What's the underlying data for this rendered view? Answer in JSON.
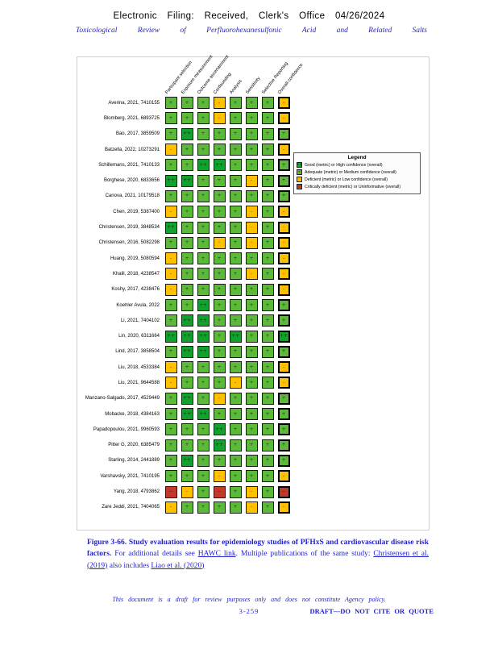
{
  "header": {
    "line1": "Electronic Filing: Received, Clerk's Office 04/26/2024",
    "line2": "Toxicological Review of Perfluorohexanesulfonic Acid and Related Salts"
  },
  "figure": {
    "legend": {
      "title": "Legend",
      "items": [
        {
          "symbol": "++",
          "color": "#12a12c",
          "label": "Good (metric) or High confidence (overall)"
        },
        {
          "symbol": "+",
          "color": "#5db93a",
          "label": "Adequate (metric) or Medium confidence (overall)"
        },
        {
          "symbol": "-",
          "color": "#ffc000",
          "label": "Deficient (metric) or Low confidence (overall)"
        },
        {
          "symbol": "--",
          "color": "#c0392b",
          "label": "Critically deficient (metric) or Uninformative (overall)"
        }
      ]
    }
  },
  "chart_data": {
    "type": "heatmap",
    "title": "Study evaluation results for epidemiology studies of PFHxS and cardiovascular disease risk factors",
    "columns": [
      "Participant selection",
      "Exposure measurement",
      "Outcome ascertainment",
      "Confounding",
      "Analysis",
      "Sensitivity",
      "Selective Reporting",
      "Overall confidence"
    ],
    "overall_column_index": 7,
    "rows": [
      "Averina, 2021, 7410155",
      "Blomberg, 2021, 6893725",
      "Bao, 2017, 3859509",
      "Batzella, 2022, 10273291",
      "Schillemans, 2021, 7410133",
      "Borghese, 2020, 6833656",
      "Canova, 2021, 10179518",
      "Chen, 2019, 5387400",
      "Christensen, 2019, 3848534",
      "Christensen, 2016, 5082298",
      "Huang, 2019, 5080594",
      "Khalil, 2018, 4238547",
      "Koshy, 2017, 4238476",
      "Koehler Avula, 2022",
      "Li, 2021, 7404102",
      "Lin, 2020, 6311664",
      "Lind, 2017, 3858504",
      "Liu, 2018, 4533384",
      "Liu, 2021, 9644588",
      "Manzano-Salgado, 2017, 4529449",
      "Mobacke, 2018, 4384163",
      "Papadopoulou, 2021, 9960593",
      "Pitter G, 2020, 6385479",
      "Starling, 2014, 2441889",
      "Varshavsky, 2021, 7410195",
      "Yang, 2018, 4793862",
      "Zare Jeddi, 2021, 7404065"
    ],
    "values": [
      [
        "+",
        "+",
        "+",
        "-",
        "+",
        "+",
        "+",
        "-"
      ],
      [
        "+",
        "+",
        "+",
        "-",
        "+",
        "+",
        "+",
        "-"
      ],
      [
        "+",
        "++",
        "+",
        "+",
        "+",
        "+",
        "+",
        "+"
      ],
      [
        "-",
        "+",
        "+",
        "+",
        "+",
        "+",
        "+",
        "-"
      ],
      [
        "+",
        "+",
        "++",
        "++",
        "+",
        "+",
        "+",
        "+"
      ],
      [
        "++",
        "++",
        "+",
        "+",
        "+",
        "-",
        "+",
        "+"
      ],
      [
        "+",
        "+",
        "+",
        "+",
        "+",
        "+",
        "+",
        "+"
      ],
      [
        "-",
        "+",
        "+",
        "+",
        "+",
        "-",
        "+",
        "-"
      ],
      [
        "++",
        "+",
        "+",
        "+",
        "+",
        "-",
        "+",
        "-"
      ],
      [
        "+",
        "+",
        "+",
        "-",
        "+",
        "-",
        "+",
        "-"
      ],
      [
        "-",
        "+",
        "+",
        "+",
        "+",
        "+",
        "+",
        "-"
      ],
      [
        "-",
        "+",
        "+",
        "+",
        "+",
        "-",
        "+",
        "-"
      ],
      [
        "-",
        "+",
        "+",
        "+",
        "+",
        "+",
        "+",
        "-"
      ],
      [
        "+",
        "+",
        "++",
        "+",
        "+",
        "+",
        "+",
        "+"
      ],
      [
        "+",
        "++",
        "++",
        "+",
        "+",
        "+",
        "+",
        "+"
      ],
      [
        "++",
        "++",
        "++",
        "+",
        "++",
        "+",
        "+",
        "++"
      ],
      [
        "+",
        "++",
        "++",
        "+",
        "+",
        "+",
        "+",
        "+"
      ],
      [
        "-",
        "+",
        "+",
        "+",
        "+",
        "+",
        "+",
        "-"
      ],
      [
        "-",
        "+",
        "+",
        "+",
        "-",
        "+",
        "+",
        "-"
      ],
      [
        "+",
        "++",
        "+",
        "-",
        "+",
        "+",
        "+",
        "+"
      ],
      [
        "+",
        "++",
        "++",
        "+",
        "+",
        "+",
        "+",
        "+"
      ],
      [
        "+",
        "+",
        "+",
        "++",
        "+",
        "+",
        "+",
        "+"
      ],
      [
        "+",
        "+",
        "+",
        "++",
        "+",
        "+",
        "+",
        "+"
      ],
      [
        "+",
        "++",
        "+",
        "+",
        "+",
        "+",
        "+",
        "+"
      ],
      [
        "+",
        "+",
        "+",
        "-",
        "+",
        "+",
        "+",
        "-"
      ],
      [
        "--",
        "-",
        "+",
        "--",
        "+",
        "-",
        "+",
        "--"
      ],
      [
        "-",
        "+",
        "+",
        "+",
        "+",
        "-",
        "+",
        "-"
      ]
    ],
    "colors": {
      "++": "#12a12c",
      "+": "#5db93a",
      "-": "#ffc000",
      "--": "#c0392b"
    },
    "value_meanings": {
      "++": "Good (metric) or High confidence (overall)",
      "+": "Adequate (metric) or Medium confidence (overall)",
      "-": "Deficient (metric) or Low confidence (overall)",
      "--": "Critically deficient (metric) or Uninformative (overall)"
    }
  },
  "caption": {
    "parts": [
      {
        "style": "bold",
        "text": "Figure 3-66. Study evaluation results for epidemiology studies of PFHxS and cardiovascular disease risk factors. "
      },
      {
        "style": "normal",
        "text": "For additional details see "
      },
      {
        "style": "link",
        "text": "HAWC link"
      },
      {
        "style": "normal",
        "text": ". Multiple publications of the same study: "
      },
      {
        "style": "link",
        "text": "Christensen et al. (2019)"
      },
      {
        "style": "normal",
        "text": " also includes "
      },
      {
        "style": "link",
        "text": "Liao et al. (2020)"
      }
    ]
  },
  "footer": {
    "disclaimer": "This document is a draft for review purposes only and does not constitute Agency policy.",
    "page_number": "3-259",
    "draft_notice": "DRAFT—DO NOT CITE OR QUOTE"
  }
}
